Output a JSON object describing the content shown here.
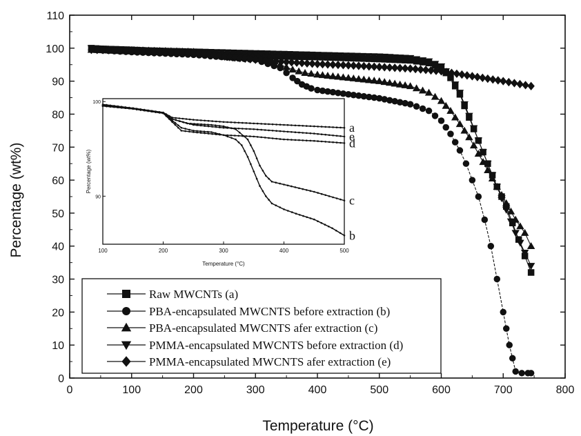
{
  "chart_data": [
    {
      "id": "main",
      "type": "line",
      "xlabel": "Temperature (°C)",
      "ylabel": "Percentage (wt%)",
      "xlim": [
        0,
        800
      ],
      "ylim": [
        0,
        110
      ],
      "xticks": [
        "0",
        "100",
        "200",
        "300",
        "400",
        "500",
        "600",
        "700",
        "800"
      ],
      "yticks": [
        "0",
        "10",
        "20",
        "30",
        "40",
        "50",
        "60",
        "70",
        "80",
        "90",
        "100",
        "110"
      ],
      "legend_position": "bottom-left",
      "grid": false,
      "series": [
        {
          "name": "Raw MWCNTs (a)",
          "marker": "square",
          "x": [
            35,
            50,
            100,
            150,
            200,
            250,
            300,
            350,
            400,
            450,
            500,
            550,
            580,
            600,
            615,
            630,
            645,
            660,
            675,
            690,
            705,
            715,
            725,
            735,
            745
          ],
          "y": [
            100,
            99.8,
            99.5,
            99,
            98.5,
            98,
            97.8,
            97.5,
            97.3,
            97,
            96.7,
            96.3,
            95.5,
            94,
            91,
            86,
            79,
            72,
            65,
            58,
            52,
            47,
            42,
            37,
            32
          ]
        },
        {
          "name": "PBA-encapsulated MWCNTS before extraction (b)",
          "marker": "circle",
          "x": [
            35,
            100,
            200,
            300,
            340,
            360,
            375,
            390,
            400,
            450,
            500,
            550,
            580,
            600,
            615,
            630,
            640,
            650,
            660,
            670,
            680,
            690,
            700,
            705,
            710,
            715,
            720,
            730,
            740,
            745
          ],
          "y": [
            99.5,
            98.8,
            98,
            96.5,
            94,
            91,
            89,
            87.8,
            87.3,
            86,
            84.8,
            83,
            81,
            78,
            74,
            69,
            65,
            60,
            55,
            48,
            40,
            30,
            20,
            15,
            10,
            6,
            2,
            1.5,
            1.5,
            1.5
          ]
        },
        {
          "name": "PBA-encapsulated MWCNTS afer extraction (c)",
          "marker": "triangle-up",
          "x": [
            35,
            100,
            200,
            300,
            340,
            360,
            380,
            400,
            450,
            500,
            550,
            580,
            600,
            615,
            630,
            645,
            660,
            675,
            690,
            705,
            720,
            735,
            745
          ],
          "y": [
            99.5,
            99,
            98.4,
            97.2,
            95,
            93.5,
            92.5,
            92,
            91,
            90,
            88.5,
            86.5,
            84,
            81,
            77,
            73,
            68,
            63,
            58,
            53,
            48,
            44,
            40
          ]
        },
        {
          "name": "PMMA-encapsulated MWCNTS before extraction (d)",
          "marker": "triangle-down",
          "x": [
            35,
            100,
            200,
            300,
            400,
            500,
            550,
            580,
            600,
            615,
            630,
            645,
            660,
            675,
            690,
            705,
            720,
            735,
            745
          ],
          "y": [
            100,
            99.5,
            99,
            98.5,
            98,
            97.5,
            97,
            96,
            94.5,
            91.5,
            86.5,
            79.5,
            72,
            65,
            58,
            51,
            44,
            38,
            34
          ]
        },
        {
          "name": "PMMA-encapsulated MWCNTS afer extraction (e)",
          "marker": "diamond",
          "x": [
            35,
            100,
            200,
            250,
            300,
            350,
            400,
            450,
            500,
            550,
            600,
            650,
            700,
            745
          ],
          "y": [
            99.5,
            99.3,
            98.8,
            97.5,
            96.5,
            95.8,
            95.2,
            94.8,
            94.3,
            93.8,
            93,
            91.5,
            90,
            88.5
          ]
        }
      ]
    },
    {
      "id": "inset",
      "type": "line",
      "xlabel": "Temperature (°C)",
      "ylabel": "Percentage (wt%)",
      "xlim": [
        100,
        500
      ],
      "ylim": [
        0,
        1
      ],
      "xticks": [
        "100",
        "200",
        "300",
        "400",
        "500"
      ],
      "ytick_labels": [
        "100",
        "90"
      ],
      "series": [
        {
          "end_label": "a",
          "x": [
            100,
            150,
            200,
            215,
            250,
            300,
            350,
            400,
            450,
            500
          ],
          "y": [
            0.96,
            0.935,
            0.905,
            0.87,
            0.855,
            0.84,
            0.83,
            0.82,
            0.81,
            0.8
          ]
        },
        {
          "end_label": "b",
          "x": [
            100,
            150,
            200,
            215,
            230,
            250,
            280,
            300,
            320,
            330,
            340,
            350,
            360,
            370,
            380,
            400,
            420,
            450,
            480,
            500
          ],
          "y": [
            0.95,
            0.93,
            0.9,
            0.85,
            0.8,
            0.78,
            0.77,
            0.75,
            0.72,
            0.68,
            0.6,
            0.5,
            0.4,
            0.33,
            0.28,
            0.24,
            0.21,
            0.17,
            0.11,
            0.06
          ]
        },
        {
          "end_label": "c",
          "x": [
            100,
            150,
            200,
            215,
            240,
            280,
            300,
            320,
            340,
            350,
            360,
            370,
            380,
            400,
            450,
            500
          ],
          "y": [
            0.95,
            0.93,
            0.9,
            0.86,
            0.83,
            0.82,
            0.81,
            0.79,
            0.72,
            0.64,
            0.54,
            0.47,
            0.43,
            0.41,
            0.36,
            0.3
          ]
        },
        {
          "end_label": "d",
          "x": [
            100,
            150,
            200,
            215,
            230,
            250,
            300,
            350,
            400,
            450,
            500
          ],
          "y": [
            0.95,
            0.93,
            0.9,
            0.84,
            0.78,
            0.77,
            0.75,
            0.74,
            0.72,
            0.71,
            0.695
          ]
        },
        {
          "end_label": "e",
          "x": [
            100,
            150,
            200,
            215,
            250,
            300,
            350,
            400,
            450,
            500
          ],
          "y": [
            0.955,
            0.93,
            0.9,
            0.86,
            0.82,
            0.8,
            0.79,
            0.775,
            0.76,
            0.74
          ]
        }
      ]
    }
  ]
}
